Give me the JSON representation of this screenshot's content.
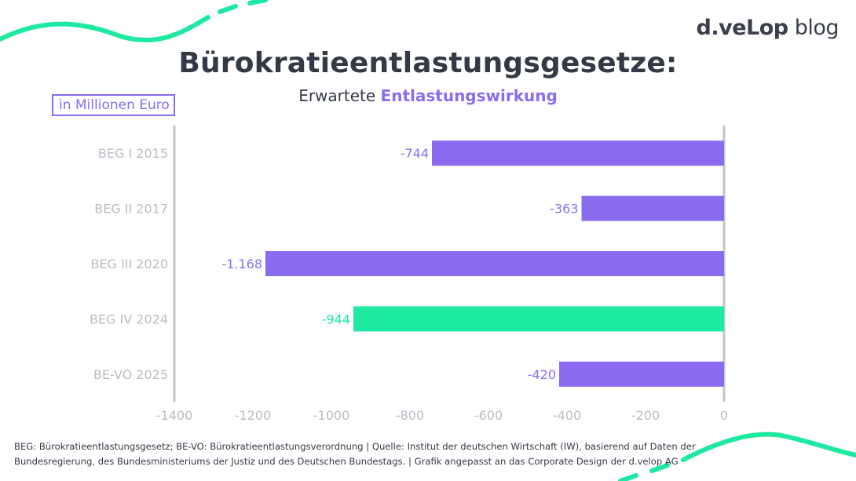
{
  "logo": {
    "brand": "d.veLop",
    "suffix": "blog"
  },
  "title": "Bürokratieentlastungsgesetze:",
  "subtitle": {
    "prefix": "Erwartete",
    "highlight": "Entlastungswirkung"
  },
  "unit_label": "in Millionen Euro",
  "footer": {
    "line1": "BEG: Bürokratieentlastungsgesetz; BE-VO: Bürokratieentlastungsverordnung | Quelle: Institut der deutschen Wirtschaft (IW), basierend auf Daten der",
    "line2": "Bundesregierung, des Bundesministeriums der Justiz und des Deutschen Bundestags. | Grafik angepasst an das Corporate Design der d.velop AG"
  },
  "colors": {
    "purple": "#8b6cf0",
    "green": "#1de9a0",
    "axis_label": "#b9bcc4",
    "axis_line": "#c2c5cc",
    "text": "#333a45"
  },
  "chart_data": {
    "type": "bar",
    "orientation": "horizontal",
    "categories": [
      "BEG I 2015",
      "BEG II 2017",
      "BEG III 2020",
      "BEG IV 2024",
      "BE-VO 2025"
    ],
    "values": [
      -744,
      -363,
      -1168,
      -944,
      -420
    ],
    "value_labels": [
      "-744",
      "-363",
      "-1.168",
      "-944",
      "-420"
    ],
    "highlight_index": 3,
    "xlim": [
      -1400,
      0
    ],
    "xticks": [
      -1400,
      -1200,
      -1000,
      -800,
      -600,
      -400,
      -200,
      0
    ],
    "grid": false,
    "legend": "none"
  }
}
